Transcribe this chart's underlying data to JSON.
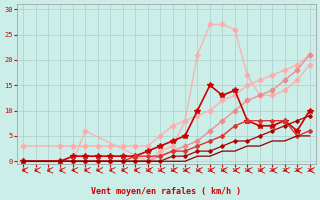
{
  "background_color": "#cceee8",
  "grid_color": "#aacccc",
  "xlabel": "Vent moyen/en rafales ( km/h )",
  "x_ticks": [
    0,
    1,
    2,
    3,
    4,
    5,
    6,
    7,
    8,
    9,
    10,
    11,
    12,
    13,
    14,
    15,
    16,
    17,
    18,
    19,
    20,
    21,
    22,
    23
  ],
  "ylim": [
    -0.5,
    31
  ],
  "xlim": [
    -0.5,
    23.5
  ],
  "y_ticks": [
    0,
    5,
    10,
    15,
    20,
    25,
    30
  ],
  "tick_color": "#cc0000",
  "label_color": "#cc0000",
  "lines": [
    {
      "x": [
        0,
        3,
        4,
        5,
        6,
        7,
        8,
        9,
        10,
        11,
        12,
        13,
        14,
        15,
        16,
        17,
        18,
        19,
        20,
        21,
        22,
        23
      ],
      "y": [
        3,
        3,
        3,
        3,
        3,
        3,
        3,
        3,
        3,
        5,
        7,
        8,
        9,
        10,
        12,
        13,
        15,
        16,
        17,
        18,
        19,
        21
      ],
      "color": "#ffaaaa",
      "alpha": 0.9,
      "linewidth": 1.0,
      "marker": "D",
      "markersize": 2.5
    },
    {
      "x": [
        0,
        3,
        4,
        5,
        10,
        11,
        12,
        13,
        14,
        15,
        16,
        17,
        18,
        19,
        20,
        21,
        22,
        23
      ],
      "y": [
        0,
        0,
        0,
        6,
        0,
        2,
        3,
        8,
        21,
        27,
        27,
        26,
        17,
        13,
        13,
        14,
        16,
        19
      ],
      "color": "#ffaaaa",
      "alpha": 0.85,
      "linewidth": 1.0,
      "marker": "D",
      "markersize": 2.5
    },
    {
      "x": [
        0,
        3,
        4,
        5,
        6,
        7,
        8,
        9,
        10,
        11,
        12,
        13,
        14,
        15,
        16,
        17,
        18,
        19,
        20,
        21,
        22,
        23
      ],
      "y": [
        0,
        0,
        0,
        0,
        0,
        0,
        0,
        0,
        0,
        1,
        2,
        3,
        4,
        6,
        8,
        10,
        12,
        13,
        14,
        16,
        18,
        21
      ],
      "color": "#ee8888",
      "alpha": 0.9,
      "linewidth": 1.0,
      "marker": "D",
      "markersize": 2.5
    },
    {
      "x": [
        0,
        3,
        4,
        5,
        6,
        7,
        8,
        9,
        10,
        11,
        12,
        13,
        14,
        15,
        16,
        17,
        18,
        19,
        20,
        21,
        22,
        23
      ],
      "y": [
        0,
        0,
        1,
        1,
        1,
        1,
        1,
        1,
        2,
        3,
        4,
        5,
        10,
        15,
        13,
        14,
        8,
        7,
        7,
        8,
        6,
        10
      ],
      "color": "#cc0000",
      "alpha": 1.0,
      "linewidth": 1.2,
      "marker": "*",
      "markersize": 4
    },
    {
      "x": [
        0,
        3,
        4,
        5,
        6,
        7,
        8,
        9,
        10,
        11,
        12,
        13,
        14,
        15,
        16,
        17,
        18,
        19,
        20,
        21,
        22,
        23
      ],
      "y": [
        0,
        0,
        0,
        0,
        0,
        0,
        0,
        1,
        1,
        1,
        2,
        2,
        3,
        4,
        5,
        7,
        8,
        8,
        8,
        8,
        5,
        6
      ],
      "color": "#dd3333",
      "alpha": 1.0,
      "linewidth": 1.0,
      "marker": "D",
      "markersize": 2
    },
    {
      "x": [
        0,
        3,
        4,
        5,
        6,
        7,
        8,
        9,
        10,
        11,
        12,
        13,
        14,
        15,
        16,
        17,
        18,
        19,
        20,
        21,
        22,
        23
      ],
      "y": [
        0,
        0,
        0,
        0,
        0,
        0,
        0,
        0,
        0,
        0,
        1,
        1,
        2,
        2,
        3,
        4,
        4,
        5,
        6,
        7,
        8,
        9
      ],
      "color": "#aa0000",
      "alpha": 1.0,
      "linewidth": 0.9,
      "marker": "D",
      "markersize": 1.8
    },
    {
      "x": [
        0,
        3,
        4,
        5,
        6,
        7,
        8,
        9,
        10,
        11,
        12,
        13,
        14,
        15,
        16,
        17,
        18,
        19,
        20,
        21,
        22,
        23
      ],
      "y": [
        0,
        0,
        0,
        0,
        0,
        0,
        0,
        0,
        0,
        0,
        0,
        0,
        1,
        1,
        2,
        2,
        3,
        3,
        4,
        4,
        5,
        5
      ],
      "color": "#880000",
      "alpha": 1.0,
      "linewidth": 0.9,
      "marker": null,
      "markersize": 1.5
    }
  ],
  "arrows_x": [
    0,
    1,
    2,
    3,
    4,
    5,
    6,
    7,
    8,
    9,
    10,
    11,
    12,
    13,
    14,
    15,
    16,
    17,
    18,
    19,
    20,
    21,
    22,
    23
  ]
}
